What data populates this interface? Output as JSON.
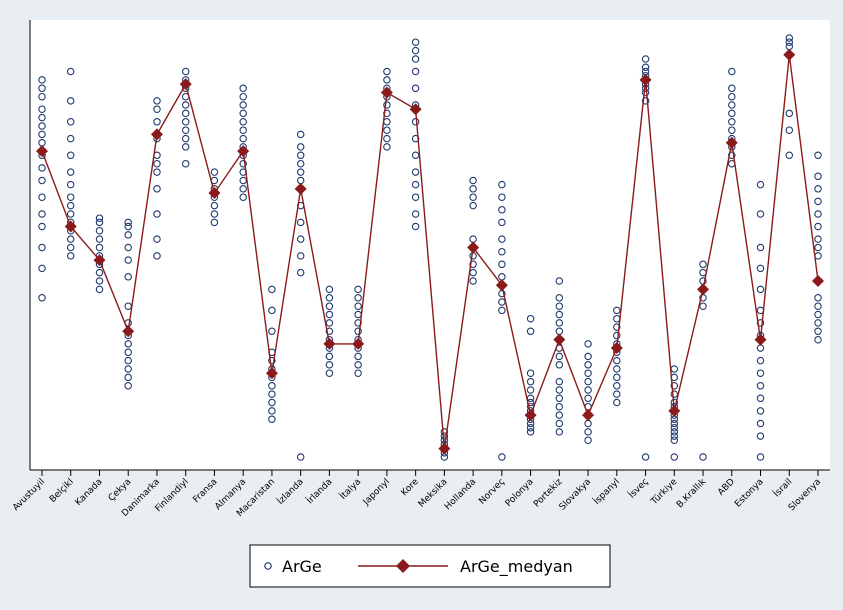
{
  "chart_data": {
    "type": "scatter",
    "categories": [
      "Avustuyil",
      "Belçikl",
      "Kanada",
      "Çekya",
      "Danimarka",
      "Finlandiyl",
      "Fransa",
      "Almanya",
      "Macaristan",
      "İzlanda",
      "İrlanda",
      "İtalya",
      "Japonyl",
      "Kore",
      "Meksika",
      "Hollanda",
      "Norveç",
      "Polonya",
      "Portekiz",
      "Slovakya",
      "İspanyl",
      "İsveç",
      "Türkiye",
      "B.Krallık",
      "ABD",
      "Estonya",
      "İsrail",
      "Slovenya"
    ],
    "legend": [
      "ArGe",
      "ArGe_medyan"
    ],
    "legend_position": "bottom",
    "grid": false,
    "ylim": [
      0,
      1
    ],
    "y_axis_labels_shown": false,
    "colors": {
      "points": "#1f3a6e",
      "line": "#8b1a1a",
      "plot_bg": "#ffffff",
      "page_bg": "#e8eef2"
    },
    "series": [
      {
        "name": "ArGe",
        "type": "scatter",
        "values": [
          [
            0.38,
            0.45,
            0.5,
            0.55,
            0.58,
            0.62,
            0.66,
            0.69,
            0.72,
            0.75,
            0.77,
            0.79,
            0.81,
            0.83,
            0.86,
            0.88,
            0.9
          ],
          [
            0.48,
            0.5,
            0.52,
            0.54,
            0.56,
            0.58,
            0.6,
            0.62,
            0.65,
            0.68,
            0.72,
            0.76,
            0.8,
            0.85,
            0.92
          ],
          [
            0.4,
            0.42,
            0.44,
            0.46,
            0.48,
            0.5,
            0.52,
            0.54,
            0.56,
            0.57
          ],
          [
            0.17,
            0.19,
            0.21,
            0.23,
            0.25,
            0.27,
            0.29,
            0.32,
            0.36,
            0.43,
            0.47,
            0.5,
            0.53,
            0.55,
            0.56
          ],
          [
            0.48,
            0.52,
            0.58,
            0.64,
            0.68,
            0.7,
            0.72,
            0.76,
            0.8,
            0.83,
            0.85
          ],
          [
            0.7,
            0.74,
            0.76,
            0.78,
            0.8,
            0.82,
            0.84,
            0.86,
            0.88,
            0.9,
            0.92
          ],
          [
            0.56,
            0.58,
            0.6,
            0.62,
            0.64,
            0.66,
            0.68
          ],
          [
            0.62,
            0.64,
            0.66,
            0.68,
            0.7,
            0.72,
            0.74,
            0.76,
            0.78,
            0.8,
            0.82,
            0.84,
            0.86,
            0.88
          ],
          [
            0.09,
            0.11,
            0.13,
            0.15,
            0.17,
            0.19,
            0.21,
            0.23,
            0.25,
            0.3,
            0.35,
            0.4
          ],
          [
            0.0,
            0.44,
            0.48,
            0.52,
            0.56,
            0.6,
            0.64,
            0.66,
            0.68,
            0.7,
            0.72,
            0.74,
            0.77
          ],
          [
            0.2,
            0.22,
            0.24,
            0.26,
            0.28,
            0.3,
            0.32,
            0.34,
            0.36,
            0.38,
            0.4
          ],
          [
            0.2,
            0.22,
            0.24,
            0.26,
            0.28,
            0.3,
            0.32,
            0.34,
            0.36,
            0.38,
            0.4
          ],
          [
            0.74,
            0.76,
            0.78,
            0.8,
            0.82,
            0.84,
            0.86,
            0.88,
            0.9,
            0.92
          ],
          [
            0.55,
            0.58,
            0.62,
            0.65,
            0.68,
            0.72,
            0.76,
            0.8,
            0.84,
            0.88,
            0.92,
            0.95,
            0.97,
            0.99
          ],
          [
            0.0,
            0.01,
            0.02,
            0.03,
            0.04,
            0.05,
            0.06
          ],
          [
            0.42,
            0.44,
            0.46,
            0.48,
            0.5,
            0.52,
            0.6,
            0.62,
            0.64,
            0.66
          ],
          [
            0.0,
            0.35,
            0.37,
            0.39,
            0.41,
            0.43,
            0.46,
            0.49,
            0.52,
            0.56,
            0.59,
            0.62,
            0.65
          ],
          [
            0.06,
            0.07,
            0.08,
            0.09,
            0.1,
            0.11,
            0.12,
            0.13,
            0.14,
            0.16,
            0.18,
            0.2,
            0.3,
            0.33
          ],
          [
            0.06,
            0.08,
            0.1,
            0.12,
            0.14,
            0.16,
            0.18,
            0.22,
            0.24,
            0.26,
            0.28,
            0.3,
            0.32,
            0.34,
            0.36,
            0.38,
            0.42
          ],
          [
            0.04,
            0.06,
            0.08,
            0.1,
            0.12,
            0.14,
            0.16,
            0.18,
            0.2,
            0.22,
            0.24,
            0.27
          ],
          [
            0.13,
            0.15,
            0.17,
            0.19,
            0.21,
            0.23,
            0.25,
            0.27,
            0.29,
            0.31,
            0.33,
            0.35
          ],
          [
            0.0,
            0.85,
            0.87,
            0.88,
            0.89,
            0.9,
            0.91,
            0.92,
            0.93,
            0.95
          ],
          [
            0.0,
            0.04,
            0.05,
            0.06,
            0.07,
            0.08,
            0.09,
            0.1,
            0.11,
            0.12,
            0.13,
            0.15,
            0.17,
            0.19,
            0.21
          ],
          [
            0.0,
            0.36,
            0.38,
            0.4,
            0.42,
            0.44,
            0.46
          ],
          [
            0.7,
            0.72,
            0.74,
            0.76,
            0.78,
            0.8,
            0.82,
            0.84,
            0.86,
            0.88,
            0.92
          ],
          [
            0.0,
            0.05,
            0.08,
            0.11,
            0.14,
            0.17,
            0.2,
            0.23,
            0.26,
            0.29,
            0.32,
            0.35,
            0.4,
            0.45,
            0.5,
            0.58,
            0.65
          ],
          [
            0.72,
            0.78,
            0.82,
            0.98,
            0.99,
            1.0
          ],
          [
            0.28,
            0.3,
            0.32,
            0.34,
            0.36,
            0.38,
            0.48,
            0.5,
            0.52,
            0.55,
            0.58,
            0.61,
            0.64,
            0.67,
            0.72
          ]
        ]
      },
      {
        "name": "ArGe_medyan",
        "type": "line",
        "values": [
          0.73,
          0.55,
          0.47,
          0.3,
          0.77,
          0.89,
          0.63,
          0.73,
          0.2,
          0.64,
          0.27,
          0.27,
          0.87,
          0.83,
          0.02,
          0.5,
          0.41,
          0.1,
          0.28,
          0.1,
          0.26,
          0.9,
          0.11,
          0.4,
          0.75,
          0.28,
          0.96,
          0.42
        ]
      }
    ]
  }
}
